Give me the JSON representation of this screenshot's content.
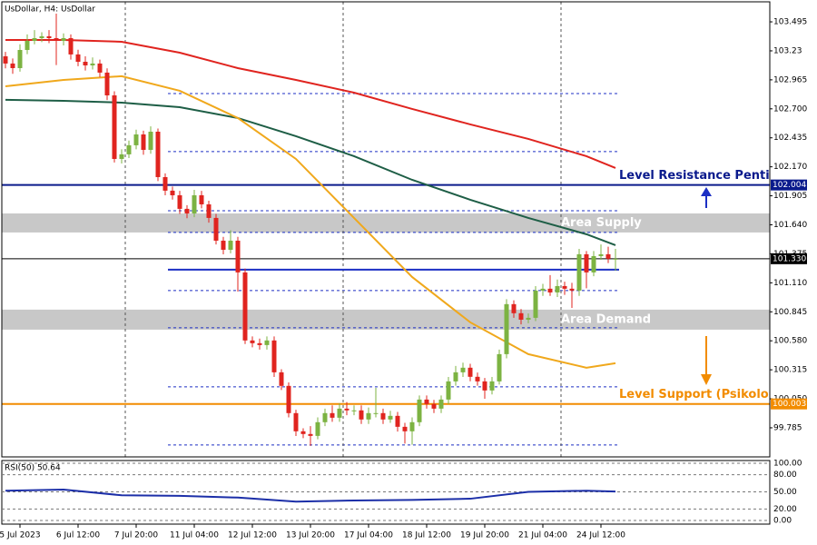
{
  "chart_data": {
    "type": "candlestick",
    "title": "UsDollar, H4:  UsDollar",
    "categories": [
      null,
      null,
      "5 Jul 2023",
      null,
      null,
      null,
      null,
      null,
      null,
      null,
      "6 Jul 12:00",
      null,
      null,
      null,
      null,
      null,
      null,
      null,
      "7 Jul 20:00",
      null,
      null,
      null,
      null,
      null,
      null,
      null,
      "11 Jul 04:00",
      null,
      null,
      null,
      null,
      null,
      null,
      null,
      "12 Jul 12:00",
      null,
      null,
      null,
      null,
      null,
      null,
      null,
      "13 Jul 20:00",
      null,
      null,
      null,
      null,
      null,
      null,
      null,
      "17 Jul 04:00",
      null,
      null,
      null,
      null,
      null,
      null,
      null,
      "18 Jul 12:00",
      null,
      null,
      null,
      null,
      null,
      null,
      null,
      "19 Jul 20:00",
      null,
      null,
      null,
      null,
      null,
      null,
      null,
      "21 Jul 04:00",
      null,
      null,
      null,
      null,
      null,
      null,
      null,
      "24 Jul 12:00",
      null,
      null
    ],
    "open": [
      103.18,
      103.114,
      103.072,
      103.238,
      103.321,
      103.346,
      103.363,
      103.346,
      103.321,
      103.346,
      103.197,
      103.13,
      103.097,
      103.114,
      103.031,
      102.823,
      102.242,
      102.284,
      102.367,
      102.466,
      102.325,
      102.491,
      102.076,
      101.952,
      101.91,
      101.786,
      101.744,
      101.91,
      101.827,
      101.703,
      101.495,
      101.412,
      101.495,
      101.205,
      100.583,
      100.558,
      100.541,
      100.583,
      100.292,
      100.168,
      99.919,
      99.753,
      99.728,
      99.711,
      99.836,
      99.919,
      99.877,
      99.96,
      99.944,
      99.944,
      99.861,
      99.919,
      99.919,
      99.861,
      99.894,
      99.794,
      99.753,
      99.836,
      100.043,
      100.002,
      99.96,
      100.043,
      100.209,
      100.292,
      100.334,
      100.251,
      100.209,
      100.126,
      100.209,
      100.458,
      100.915,
      100.832,
      100.773,
      100.79,
      101.039,
      101.056,
      101.022,
      101.08,
      101.056,
      101.039,
      101.371,
      101.205,
      101.354,
      101.371,
      101.33
    ],
    "high": [
      103.22,
      103.16,
      103.29,
      103.38,
      103.42,
      103.4,
      103.42,
      103.57,
      103.39,
      103.38,
      103.24,
      103.18,
      103.17,
      103.15,
      103.07,
      102.86,
      102.33,
      102.41,
      102.51,
      102.5,
      102.54,
      102.52,
      102.11,
      101.99,
      101.95,
      101.82,
      101.96,
      101.95,
      101.86,
      101.74,
      101.53,
      101.59,
      101.53,
      101.24,
      100.62,
      100.6,
      100.62,
      100.62,
      100.32,
      100.2,
      99.95,
      99.78,
      99.8,
      99.88,
      99.96,
      99.99,
      100.01,
      100.02,
      99.99,
      99.99,
      99.97,
      100.15,
      99.96,
      99.94,
      99.93,
      99.83,
      99.88,
      100.08,
      100.08,
      100.04,
      100.08,
      100.25,
      100.35,
      100.38,
      100.37,
      100.29,
      100.24,
      100.25,
      100.5,
      100.96,
      100.95,
      100.87,
      100.83,
      101.08,
      101.1,
      101.18,
      101.14,
      101.12,
      101.11,
      101.42,
      101.4,
      101.4,
      101.46,
      101.44,
      101.42
    ],
    "low": [
      103.07,
      103.02,
      103.04,
      103.2,
      103.29,
      103.31,
      103.3,
      103.1,
      103.28,
      103.15,
      103.09,
      103.05,
      103.06,
      102.99,
      102.78,
      102.21,
      102.2,
      102.25,
      102.33,
      102.28,
      102.29,
      102.04,
      101.91,
      101.87,
      101.74,
      101.7,
      101.71,
      101.79,
      101.66,
      101.46,
      101.37,
      101.38,
      101.03,
      100.55,
      100.52,
      100.5,
      100.5,
      100.25,
      100.13,
      99.88,
      99.71,
      99.69,
      99.62,
      99.68,
      99.8,
      99.84,
      99.84,
      99.9,
      99.9,
      99.82,
      99.82,
      99.88,
      99.82,
      99.83,
      99.75,
      99.64,
      99.63,
      99.8,
      99.96,
      99.92,
      99.92,
      100,
      100.17,
      100.25,
      100.21,
      100.17,
      100.05,
      100.09,
      100.18,
      100.42,
      100.79,
      100.73,
      100.74,
      100.76,
      100.99,
      100.99,
      100.98,
      101,
      100.88,
      100.99,
      101.06,
      101.17,
      101.32,
      101.29,
      101.22
    ],
    "close": [
      103.114,
      103.072,
      103.238,
      103.321,
      103.346,
      103.363,
      103.346,
      103.321,
      103.346,
      103.197,
      103.13,
      103.097,
      103.114,
      103.031,
      102.823,
      102.242,
      102.284,
      102.367,
      102.466,
      102.325,
      102.491,
      102.076,
      101.952,
      101.91,
      101.786,
      101.744,
      101.91,
      101.827,
      101.703,
      101.495,
      101.412,
      101.495,
      101.205,
      100.583,
      100.558,
      100.541,
      100.583,
      100.292,
      100.168,
      99.919,
      99.753,
      99.728,
      99.711,
      99.836,
      99.919,
      99.877,
      99.96,
      99.944,
      99.944,
      99.861,
      99.919,
      99.919,
      99.861,
      99.894,
      99.794,
      99.753,
      99.836,
      100.043,
      100.002,
      99.96,
      100.043,
      100.209,
      100.292,
      100.334,
      100.251,
      100.209,
      100.126,
      100.209,
      100.458,
      100.915,
      100.832,
      100.773,
      100.79,
      101.039,
      101.056,
      101.022,
      101.08,
      101.056,
      101.039,
      101.371,
      101.205,
      101.354,
      101.371,
      101.33,
      101.33
    ],
    "up_color": "#7cb342",
    "down_color": "#e0241f",
    "ylim": [
      99.519,
      103.678
    ],
    "yticks": [
      103.495,
      103.23,
      102.965,
      {
        "value": 102.7,
        "label": "102.700"
      },
      102.435,
      {
        "value": 102.17,
        "label": "102.170"
      },
      101.905,
      {
        "value": 101.64,
        "label": "101.640"
      },
      101.375,
      {
        "value": 101.11,
        "label": "101.110"
      },
      100.845,
      {
        "value": 100.58,
        "label": "100.580"
      },
      100.315,
      {
        "value": 100.05,
        "label": "100.050"
      },
      99.785
    ],
    "moving_averages": [
      {
        "color": "#e0241f",
        "x": [
          0,
          8,
          16,
          24,
          32,
          40,
          48,
          56,
          64,
          72,
          80,
          84
        ],
        "values": [
          103.329,
          103.329,
          103.313,
          103.213,
          103.072,
          102.964,
          102.848,
          102.699,
          102.558,
          102.425,
          102.267,
          102.159
        ]
      },
      {
        "color": "#1e5e46",
        "x": [
          0,
          8,
          16,
          24,
          32,
          40,
          48,
          56,
          64,
          72,
          80,
          84
        ],
        "values": [
          102.782,
          102.773,
          102.757,
          102.715,
          102.616,
          102.45,
          102.267,
          102.051,
          101.869,
          101.703,
          101.554,
          101.454
        ]
      },
      {
        "color": "#f0a81c",
        "x": [
          0,
          8,
          16,
          24,
          32,
          40,
          48,
          56,
          64,
          72,
          80,
          84
        ],
        "values": [
          102.906,
          102.964,
          102.998,
          102.865,
          102.616,
          102.242,
          101.703,
          101.163,
          100.749,
          100.458,
          100.334,
          100.375
        ]
      }
    ],
    "zones": [
      {
        "label": "Area Supply",
        "top": 101.744,
        "bottom": 101.57
      },
      {
        "label": "Area Demand",
        "top": 100.865,
        "bottom": 100.682
      }
    ],
    "levels": [
      {
        "value": 102.004,
        "color": "#0a1a8c",
        "label": "Level Resistance Penti"
      },
      {
        "value": 100.003,
        "color": "#f28c00",
        "label": "Level Support (Psikolo"
      }
    ],
    "short_level": {
      "value": 101.23,
      "color": "#1c2fc4"
    },
    "dashed_levels": [
      102.84,
      102.309,
      101.769,
      101.57,
      101.039,
      100.699,
      100.159,
      99.628
    ],
    "current_price": {
      "value": 101.33,
      "label": "101.330"
    },
    "rsi": {
      "title": "RSI(50) 50.64",
      "color": "#1c2fa8",
      "ylim": [
        0,
        100
      ],
      "yticks": [
        {
          "value": 100,
          "label": "100.00"
        },
        {
          "value": 80,
          "label": "80.00"
        },
        {
          "value": 50,
          "label": "50.00"
        },
        {
          "value": 20,
          "label": "20.00"
        },
        {
          "value": 0,
          "label": "0.00"
        }
      ],
      "x": [
        0,
        8,
        16,
        24,
        32,
        40,
        48,
        56,
        64,
        72,
        80,
        84
      ],
      "values": [
        52,
        54,
        44,
        43,
        40,
        33,
        35,
        36,
        38,
        50,
        52,
        50.64
      ]
    }
  }
}
